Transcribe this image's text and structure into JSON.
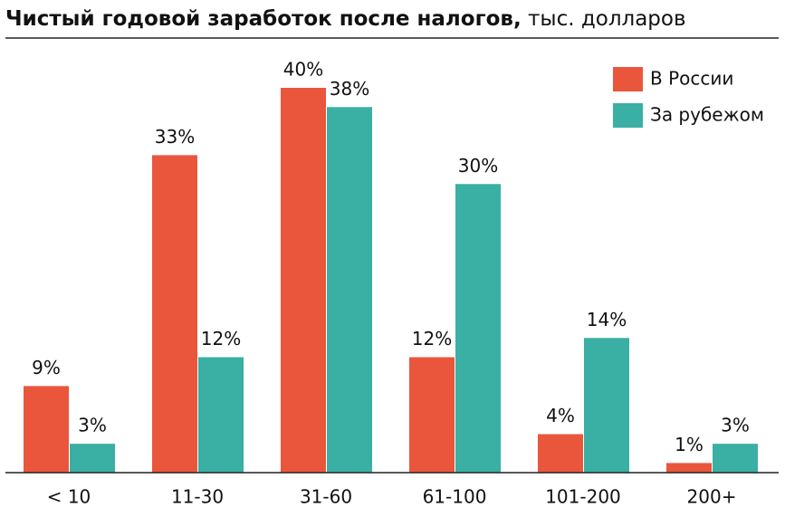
{
  "chart_data": {
    "type": "bar",
    "title": "Чистый годовой заработок после налогов,",
    "subtitle": "тыс. долларов",
    "categories": [
      "< 10",
      "11-30",
      "31-60",
      "61-100",
      "101-200",
      "200+"
    ],
    "series": [
      {
        "name": "В России",
        "color": "#ea563c",
        "values": [
          9,
          33,
          40,
          12,
          4,
          1
        ],
        "value_labels": [
          "9%",
          "33%",
          "40%",
          "12%",
          "4%",
          "1%"
        ]
      },
      {
        "name": "За рубежом",
        "color": "#3aafa3",
        "values": [
          3,
          12,
          38,
          30,
          14,
          3
        ],
        "value_labels": [
          "3%",
          "12%",
          "38%",
          "30%",
          "14%",
          "3%"
        ]
      }
    ],
    "legend": "top-right"
  }
}
